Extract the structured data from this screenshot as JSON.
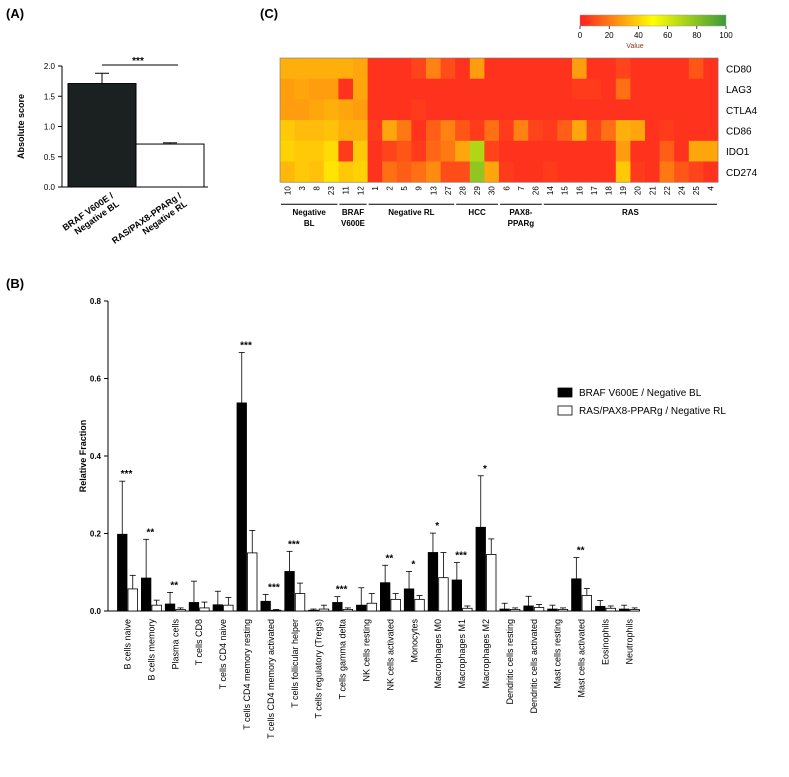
{
  "panelA": {
    "label": "(A)",
    "chart_data": {
      "type": "bar",
      "categories": [
        "BRAF V600E / Negative BL",
        "RAS/PAX8-PPARg / Negative RL"
      ],
      "tick_labels": [
        "BRAF V600E /\nNegative BL",
        "RAS/PAX8-PPARg /\nNegative RL"
      ],
      "values": [
        1.71,
        0.71
      ],
      "errors": [
        0.17,
        0.02
      ],
      "colors": [
        "#1b2120",
        "#ffffff"
      ],
      "ylabel": "Absolute score",
      "ylim": [
        0,
        2.0
      ],
      "yticks": [
        "0.0",
        "0.5",
        "1.0",
        "1.5",
        "2.0"
      ],
      "significance": "***"
    }
  },
  "panelB": {
    "label": "(B)",
    "chart_data": {
      "type": "bar",
      "ylabel": "Relative Fraction",
      "ylim": [
        0,
        0.8
      ],
      "yticks": [
        "0.0",
        "0.2",
        "0.4",
        "0.6",
        "0.8"
      ],
      "legend_position": "top-right",
      "categories": [
        "B cells naive",
        "B cells memory",
        "Plasma cells",
        "T cells CD8",
        "T cells CD4 naive",
        "T cells CD4 memory resting",
        "T cells CD4 memory activated",
        "T cells follicular helper",
        "T cells regulatory (Tregs)",
        "T cells gamma delta",
        "NK cells resting",
        "NK cells activated",
        "Monocytes",
        "Macrophages M0",
        "Macrophages M1",
        "Macrophages M2",
        "Dendritic cells resting",
        "Dendritic cells activated",
        "Mast cells resting",
        "Mast cells activated",
        "Eosinophils",
        "Neutrophils"
      ],
      "series": [
        {
          "name": "BRAF V600E / Negative BL",
          "color": "#000000",
          "values": [
            0.198,
            0.085,
            0.018,
            0.022,
            0.016,
            0.537,
            0.025,
            0.102,
            0.002,
            0.022,
            0.015,
            0.073,
            0.057,
            0.151,
            0.08,
            0.216,
            0.005,
            0.013,
            0.005,
            0.083,
            0.012,
            0.005
          ],
          "errors": [
            0.137,
            0.1,
            0.03,
            0.055,
            0.035,
            0.13,
            0.018,
            0.052,
            0.003,
            0.015,
            0.045,
            0.045,
            0.045,
            0.05,
            0.045,
            0.133,
            0.015,
            0.025,
            0.01,
            0.055,
            0.015,
            0.01
          ]
        },
        {
          "name": "RAS/PAX8-PPARg / Negative RL",
          "color": "#ffffff",
          "values": [
            0.057,
            0.015,
            0.004,
            0.008,
            0.015,
            0.15,
            0.002,
            0.045,
            0.005,
            0.004,
            0.02,
            0.03,
            0.03,
            0.086,
            0.007,
            0.146,
            0.004,
            0.009,
            0.004,
            0.04,
            0.007,
            0.004
          ],
          "errors": [
            0.035,
            0.013,
            0.004,
            0.015,
            0.02,
            0.058,
            0.002,
            0.027,
            0.01,
            0.004,
            0.025,
            0.015,
            0.01,
            0.065,
            0.006,
            0.04,
            0.004,
            0.008,
            0.004,
            0.018,
            0.006,
            0.004
          ]
        }
      ],
      "significance": [
        "***",
        "**",
        "**",
        "",
        "",
        "***",
        "***",
        "***",
        "",
        "***",
        "",
        "**",
        "*",
        "*",
        "***",
        "*",
        "",
        "",
        "",
        "**",
        "",
        ""
      ]
    }
  },
  "panelC": {
    "label": "(C)",
    "chart_data": {
      "type": "heatmap",
      "colorbar_label": "Value",
      "colorbar_ticks": [
        "0",
        "20",
        "40",
        "60",
        "80",
        "100"
      ],
      "colorscale": [
        "#ff2020",
        "#ffff00",
        "#3a9a3a"
      ],
      "rows": [
        "CD80",
        "LAG3",
        "CTLA4",
        "CD86",
        "IDO1",
        "CD274"
      ],
      "columns": [
        "10",
        "3",
        "8",
        "23",
        "11",
        "12",
        "1",
        "2",
        "5",
        "9",
        "13",
        "27",
        "28",
        "29",
        "30",
        "6",
        "7",
        "26",
        "14",
        "15",
        "16",
        "17",
        "18",
        "19",
        "20",
        "21",
        "22",
        "24",
        "25",
        "4"
      ],
      "values": [
        [
          32,
          32,
          32,
          32,
          32,
          30,
          4,
          4,
          4,
          8,
          22,
          10,
          4,
          28,
          4,
          4,
          4,
          4,
          4,
          4,
          28,
          4,
          4,
          8,
          4,
          4,
          4,
          4,
          12,
          4
        ],
        [
          28,
          30,
          28,
          28,
          4,
          30,
          4,
          4,
          4,
          4,
          4,
          4,
          4,
          4,
          4,
          4,
          4,
          4,
          4,
          4,
          6,
          6,
          4,
          18,
          4,
          4,
          4,
          4,
          4,
          4
        ],
        [
          28,
          28,
          30,
          32,
          30,
          28,
          4,
          4,
          4,
          6,
          4,
          4,
          4,
          4,
          4,
          4,
          4,
          4,
          4,
          4,
          4,
          4,
          4,
          4,
          4,
          4,
          4,
          4,
          4,
          4
        ],
        [
          38,
          35,
          35,
          36,
          32,
          32,
          6,
          30,
          20,
          4,
          14,
          22,
          12,
          6,
          18,
          6,
          22,
          8,
          6,
          14,
          30,
          8,
          18,
          32,
          30,
          4,
          6,
          4,
          4,
          4
        ],
        [
          40,
          38,
          38,
          42,
          6,
          38,
          4,
          8,
          12,
          6,
          16,
          20,
          30,
          70,
          8,
          4,
          4,
          4,
          4,
          4,
          4,
          4,
          4,
          28,
          4,
          4,
          14,
          4,
          30,
          30
        ],
        [
          34,
          38,
          36,
          44,
          38,
          40,
          4,
          18,
          14,
          18,
          24,
          10,
          10,
          78,
          30,
          6,
          4,
          4,
          6,
          4,
          4,
          4,
          4,
          38,
          6,
          4,
          20,
          12,
          8,
          4
        ]
      ],
      "groups": [
        {
          "label": "Negative\nBL",
          "start": 0,
          "end": 3
        },
        {
          "label": "BRAF\nV600E",
          "start": 4,
          "end": 5
        },
        {
          "label": "Negative RL",
          "start": 6,
          "end": 11
        },
        {
          "label": "HCC",
          "start": 12,
          "end": 14
        },
        {
          "label": "PAX8-\nPPARg",
          "start": 15,
          "end": 17
        },
        {
          "label": "RAS",
          "start": 18,
          "end": 29
        }
      ]
    }
  }
}
